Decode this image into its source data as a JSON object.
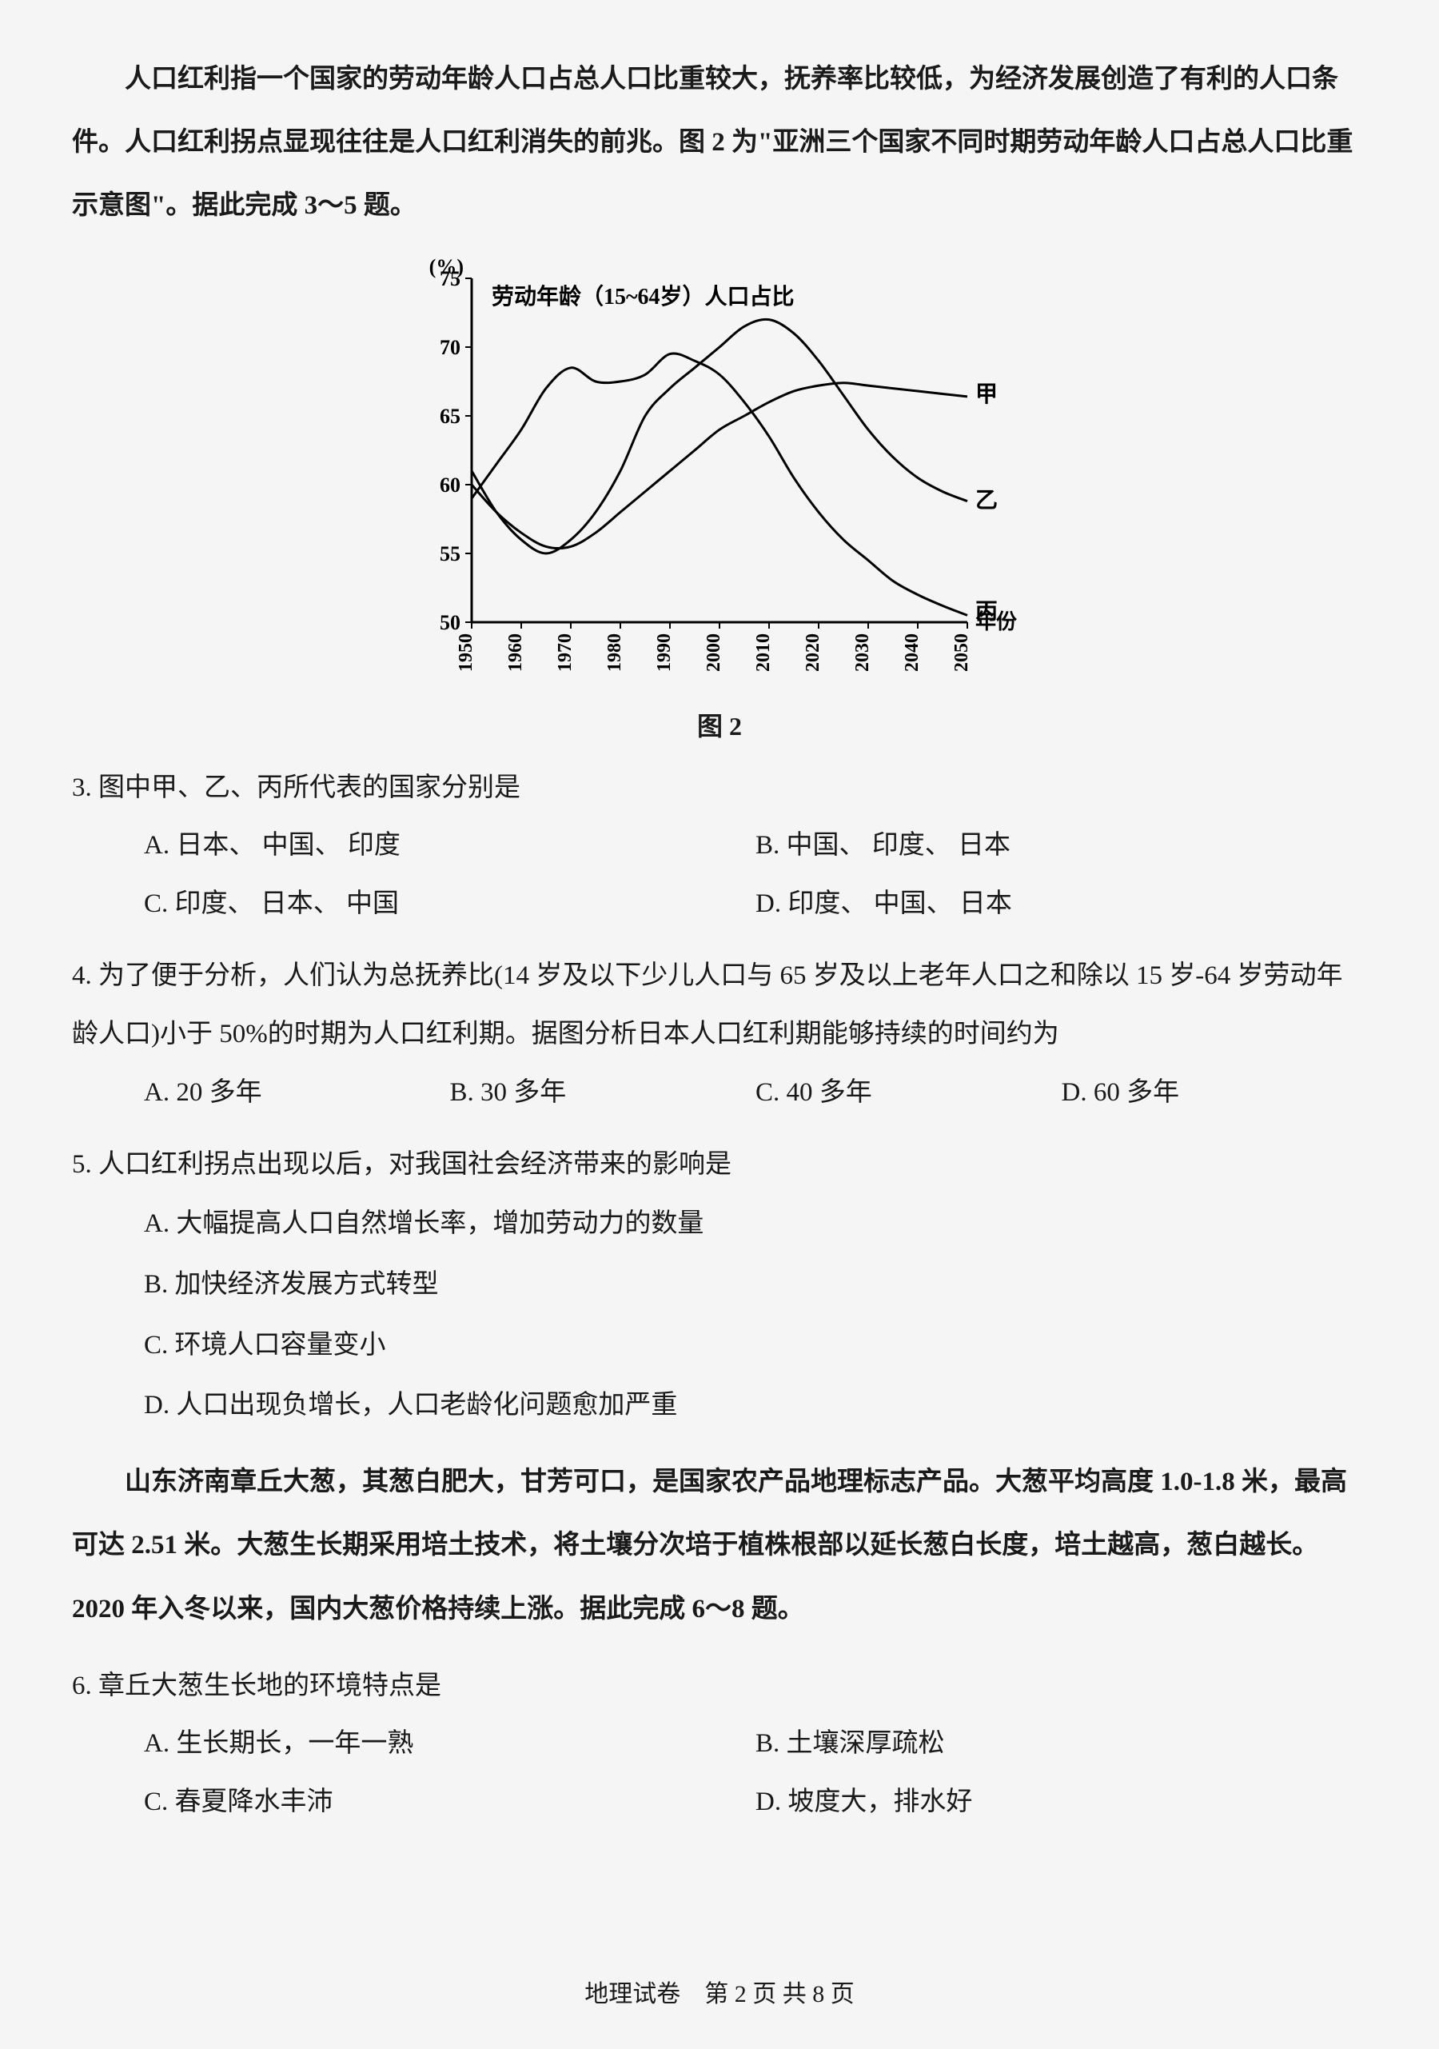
{
  "intro35": "人口红利指一个国家的劳动年龄人口占总人口比重较大，抚养率比较低，为经济发展创造了有利的人口条件。人口红利拐点显现往往是人口红利消失的前兆。图 2 为\"亚洲三个国家不同时期劳动年龄人口占总人口比重示意图\"。据此完成 3～5 题。",
  "chart_caption": "图 2",
  "chart": {
    "type": "line",
    "title": "劳动年龄（15~64岁）人口占比",
    "title_fontsize": 28,
    "y_axis_label": "(%)",
    "xlim": [
      1950,
      2050
    ],
    "ylim": [
      50,
      75
    ],
    "xticks": [
      1950,
      1960,
      1970,
      1980,
      1990,
      2000,
      2010,
      2020,
      2030,
      2040,
      2050
    ],
    "yticks": [
      50,
      55,
      60,
      65,
      70,
      75
    ],
    "x_axis_end_label": "年份",
    "grid": false,
    "line_color": "#000000",
    "line_width": 3,
    "bg_color": "#f5f5f5",
    "series": {
      "jia": {
        "label": "甲",
        "data": [
          [
            1950,
            60
          ],
          [
            1955,
            58
          ],
          [
            1960,
            56.5
          ],
          [
            1965,
            55.5
          ],
          [
            1970,
            55.5
          ],
          [
            1975,
            56.5
          ],
          [
            1980,
            58
          ],
          [
            1985,
            59.5
          ],
          [
            1990,
            61
          ],
          [
            1995,
            62.5
          ],
          [
            2000,
            64
          ],
          [
            2005,
            65
          ],
          [
            2010,
            66
          ],
          [
            2015,
            66.8
          ],
          [
            2020,
            67.2
          ],
          [
            2025,
            67.4
          ],
          [
            2030,
            67.2
          ],
          [
            2035,
            67
          ],
          [
            2040,
            66.8
          ],
          [
            2045,
            66.6
          ],
          [
            2050,
            66.4
          ]
        ]
      },
      "yi": {
        "label": "乙",
        "data": [
          [
            1950,
            61
          ],
          [
            1955,
            58
          ],
          [
            1960,
            56
          ],
          [
            1965,
            55
          ],
          [
            1970,
            56
          ],
          [
            1975,
            58
          ],
          [
            1980,
            61
          ],
          [
            1985,
            65
          ],
          [
            1990,
            67
          ],
          [
            1995,
            68.5
          ],
          [
            2000,
            70
          ],
          [
            2005,
            71.5
          ],
          [
            2010,
            72
          ],
          [
            2015,
            71
          ],
          [
            2020,
            69
          ],
          [
            2025,
            66.5
          ],
          [
            2030,
            64
          ],
          [
            2035,
            62
          ],
          [
            2040,
            60.5
          ],
          [
            2045,
            59.5
          ],
          [
            2050,
            58.8
          ]
        ]
      },
      "bing": {
        "label": "丙",
        "data": [
          [
            1950,
            59
          ],
          [
            1955,
            61.5
          ],
          [
            1960,
            64
          ],
          [
            1965,
            67
          ],
          [
            1970,
            68.5
          ],
          [
            1975,
            67.5
          ],
          [
            1980,
            67.5
          ],
          [
            1985,
            68
          ],
          [
            1990,
            69.5
          ],
          [
            1995,
            69
          ],
          [
            2000,
            68
          ],
          [
            2005,
            66
          ],
          [
            2010,
            63.5
          ],
          [
            2015,
            60.5
          ],
          [
            2020,
            58
          ],
          [
            2025,
            56
          ],
          [
            2030,
            54.5
          ],
          [
            2035,
            53
          ],
          [
            2040,
            52
          ],
          [
            2045,
            51.2
          ],
          [
            2050,
            50.5
          ]
        ]
      }
    }
  },
  "q3": {
    "stem": "3. 图中甲、乙、丙所代表的国家分别是",
    "A": "A. 日本、 中国、 印度",
    "B": "B. 中国、 印度、 日本",
    "C": "C. 印度、 日本、 中国",
    "D": "D. 印度、 中国、 日本"
  },
  "q4": {
    "stem": "4. 为了便于分析，人们认为总抚养比(14 岁及以下少儿人口与 65 岁及以上老年人口之和除以 15 岁-64 岁劳动年龄人口)小于 50%的时期为人口红利期。据图分析日本人口红利期能够持续的时间约为",
    "A": "A. 20 多年",
    "B": "B. 30 多年",
    "C": "C. 40 多年",
    "D": "D. 60 多年"
  },
  "q5": {
    "stem": "5. 人口红利拐点出现以后，对我国社会经济带来的影响是",
    "A": "A. 大幅提高人口自然增长率，增加劳动力的数量",
    "B": "B. 加快经济发展方式转型",
    "C": "C. 环境人口容量变小",
    "D": "D. 人口出现负增长，人口老龄化问题愈加严重"
  },
  "intro68": "山东济南章丘大葱，其葱白肥大，甘芳可口，是国家农产品地理标志产品。大葱平均高度 1.0-1.8 米，最高可达 2.51 米。大葱生长期采用培土技术，将土壤分次培于植株根部以延长葱白长度，培土越高，葱白越长。2020 年入冬以来，国内大葱价格持续上涨。据此完成 6～8 题。",
  "q6": {
    "stem": "6. 章丘大葱生长地的环境特点是",
    "A": "A. 生长期长，一年一熟",
    "B": "B. 土壤深厚疏松",
    "C": "C. 春夏降水丰沛",
    "D": "D. 坡度大，排水好"
  },
  "footer": "地理试卷　第 2 页 共 8 页"
}
